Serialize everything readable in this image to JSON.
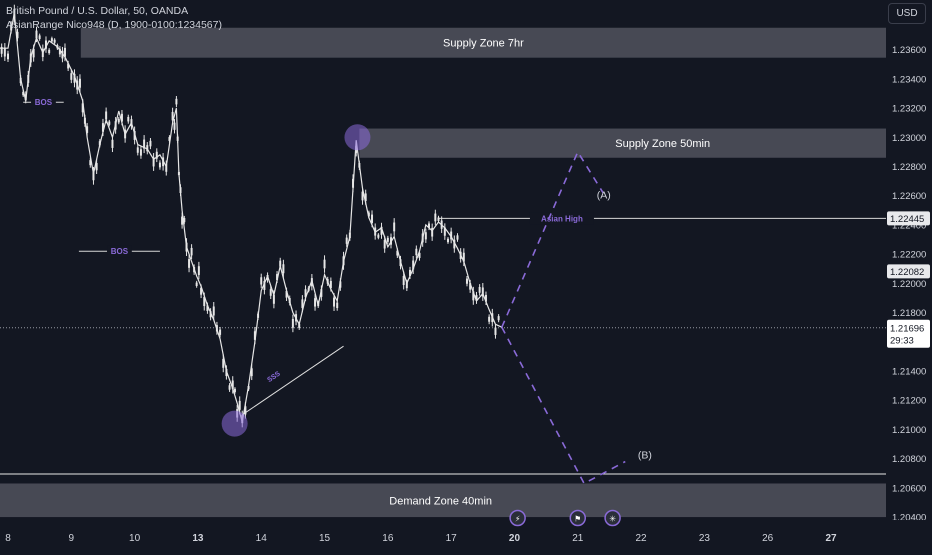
{
  "header": {
    "title": "British Pound / U.S. Dollar, 50, OANDA",
    "indicator": "AsianRange Nico948 (D, 1900-0100:1234567)"
  },
  "currency_button": "USD",
  "colors": {
    "background": "#131722",
    "candle": "#e6e6e6",
    "zone_fill": "#4a4c57",
    "annotation_purple": "#8a6ad8",
    "label_bg": "#e8e9ec"
  },
  "chart_data": {
    "type": "line",
    "title": "British Pound / U.S. Dollar, 50, OANDA",
    "xlabel": "",
    "ylabel": "",
    "x_ticks": [
      {
        "label": "8",
        "pos": 8,
        "bold": false
      },
      {
        "label": "9",
        "pos": 9,
        "bold": false
      },
      {
        "label": "10",
        "pos": 10,
        "bold": false
      },
      {
        "label": "13",
        "pos": 11,
        "bold": true
      },
      {
        "label": "14",
        "pos": 12,
        "bold": false
      },
      {
        "label": "15",
        "pos": 13,
        "bold": false
      },
      {
        "label": "16",
        "pos": 14,
        "bold": false
      },
      {
        "label": "17",
        "pos": 15,
        "bold": false
      },
      {
        "label": "20",
        "pos": 16,
        "bold": true
      },
      {
        "label": "21",
        "pos": 17,
        "bold": false
      },
      {
        "label": "22",
        "pos": 18,
        "bold": false
      },
      {
        "label": "23",
        "pos": 19,
        "bold": false
      },
      {
        "label": "26",
        "pos": 20,
        "bold": false
      },
      {
        "label": "27",
        "pos": 21,
        "bold": true
      }
    ],
    "y_ticks": [
      "1.23600",
      "1.23400",
      "1.23200",
      "1.23000",
      "1.22800",
      "1.22600",
      "1.22400",
      "1.22200",
      "1.22000",
      "1.21800",
      "1.21600",
      "1.21400",
      "1.21200",
      "1.21000",
      "1.20800",
      "1.20600",
      "1.20400"
    ],
    "ylim": [
      1.2038,
      1.2394
    ],
    "current_price": "1.21696",
    "countdown": "29:33",
    "price_labels": [
      {
        "price": "1.22445",
        "y": 1.22445
      },
      {
        "price": "1.22082",
        "y": 1.22082
      }
    ],
    "path": [
      [
        7.8,
        1.2361
      ],
      [
        8.0,
        1.2361
      ],
      [
        8.1,
        1.2385
      ],
      [
        8.2,
        1.234
      ],
      [
        8.28,
        1.2325
      ],
      [
        8.36,
        1.2355
      ],
      [
        8.45,
        1.2368
      ],
      [
        8.55,
        1.2358
      ],
      [
        8.65,
        1.2366
      ],
      [
        8.78,
        1.2362
      ],
      [
        8.9,
        1.2355
      ],
      [
        9.05,
        1.2342
      ],
      [
        9.18,
        1.2325
      ],
      [
        9.25,
        1.23
      ],
      [
        9.35,
        1.2275
      ],
      [
        9.45,
        1.2295
      ],
      [
        9.55,
        1.2312
      ],
      [
        9.65,
        1.23
      ],
      [
        9.75,
        1.2318
      ],
      [
        9.85,
        1.2302
      ],
      [
        9.95,
        1.231
      ],
      [
        10.05,
        1.2295
      ],
      [
        10.2,
        1.2292
      ],
      [
        10.3,
        1.2285
      ],
      [
        10.4,
        1.2288
      ],
      [
        10.5,
        1.228
      ],
      [
        10.6,
        1.231
      ],
      [
        10.66,
        1.232
      ],
      [
        10.7,
        1.2275
      ],
      [
        10.75,
        1.225
      ],
      [
        10.82,
        1.2225
      ],
      [
        10.9,
        1.2215
      ],
      [
        10.98,
        1.2205
      ],
      [
        11.05,
        1.2198
      ],
      [
        11.15,
        1.2185
      ],
      [
        11.25,
        1.2175
      ],
      [
        11.35,
        1.2162
      ],
      [
        11.45,
        1.214
      ],
      [
        11.55,
        1.2128
      ],
      [
        11.62,
        1.2118
      ],
      [
        11.7,
        1.2105
      ],
      [
        11.8,
        1.213
      ],
      [
        11.9,
        1.216
      ],
      [
        12.0,
        1.2195
      ],
      [
        12.1,
        1.2205
      ],
      [
        12.2,
        1.2192
      ],
      [
        12.3,
        1.2212
      ],
      [
        12.4,
        1.2195
      ],
      [
        12.5,
        1.218
      ],
      [
        12.6,
        1.2172
      ],
      [
        12.7,
        1.219
      ],
      [
        12.8,
        1.2202
      ],
      [
        12.9,
        1.2185
      ],
      [
        13.0,
        1.2206
      ],
      [
        13.1,
        1.2196
      ],
      [
        13.2,
        1.2188
      ],
      [
        13.3,
        1.2215
      ],
      [
        13.4,
        1.2232
      ],
      [
        13.5,
        1.2298
      ],
      [
        13.6,
        1.2265
      ],
      [
        13.7,
        1.2245
      ],
      [
        13.8,
        1.2235
      ],
      [
        13.9,
        1.2238
      ],
      [
        14.0,
        1.2225
      ],
      [
        14.1,
        1.2232
      ],
      [
        14.2,
        1.2215
      ],
      [
        14.3,
        1.22
      ],
      [
        14.4,
        1.221
      ],
      [
        14.5,
        1.2222
      ],
      [
        14.6,
        1.224
      ],
      [
        14.7,
        1.2236
      ],
      [
        14.8,
        1.2242
      ],
      [
        14.9,
        1.2238
      ],
      [
        15.0,
        1.2232
      ],
      [
        15.1,
        1.2224
      ],
      [
        15.2,
        1.2215
      ],
      [
        15.3,
        1.22
      ],
      [
        15.4,
        1.2188
      ],
      [
        15.5,
        1.2193
      ],
      [
        15.6,
        1.2182
      ],
      [
        15.7,
        1.2172
      ],
      [
        15.8,
        1.217
      ]
    ],
    "zones": [
      {
        "label": "Supply Zone 7hr",
        "top": 1.2375,
        "bottom": 1.23545,
        "x_start": 9.15
      },
      {
        "label": "Supply Zone 50min",
        "top": 1.2306,
        "bottom": 1.2286,
        "x_start": 13.55
      },
      {
        "label": "Demand Zone 40min",
        "top": 1.2063,
        "bottom": 1.204,
        "x_start": 7.8
      }
    ],
    "support_lines": [
      {
        "y": 1.20695,
        "x_from": 7.8,
        "x_to": 21.9
      }
    ],
    "annotations": [
      {
        "kind": "level",
        "text": "BOS",
        "y": 1.2324,
        "x_from": 8.24,
        "x_to": 8.88,
        "label_x": 8.56
      },
      {
        "kind": "level",
        "text": "BOS",
        "y": 1.2222,
        "x_from": 9.12,
        "x_to": 10.4,
        "label_x": 9.76
      },
      {
        "kind": "level",
        "text": "Asian High",
        "y": 1.22445,
        "x_from": 14.8,
        "x_to": 21.9,
        "label_x": 16.75
      },
      {
        "kind": "diag",
        "text": "SSS",
        "x1": 11.7,
        "y1": 1.211,
        "x2": 13.3,
        "y2": 1.2157
      }
    ],
    "circles": [
      {
        "x": 11.58,
        "y": 1.2104
      },
      {
        "x": 13.52,
        "y": 1.23
      }
    ],
    "projections": [
      {
        "label": "(A)",
        "points": [
          [
            15.8,
            1.217
          ],
          [
            17.0,
            1.229
          ],
          [
            17.4,
            1.2262
          ]
        ],
        "label_pos": [
          17.3,
          1.2261
        ]
      },
      {
        "label": "(B)",
        "points": [
          [
            15.8,
            1.217
          ],
          [
            17.1,
            1.2063
          ],
          [
            17.75,
            1.2078
          ]
        ],
        "label_pos": [
          17.95,
          1.2083
        ]
      }
    ],
    "event_markers": [
      {
        "icon": "lightning-icon",
        "x": 16.05
      },
      {
        "icon": "flag-icon",
        "x": 17.0
      },
      {
        "icon": "asterisk-icon",
        "x": 17.55
      }
    ]
  }
}
